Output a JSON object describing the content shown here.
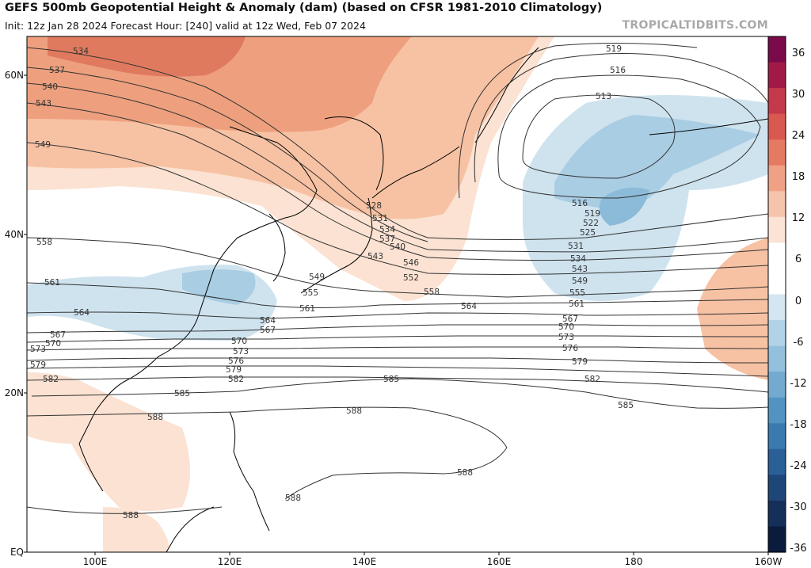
{
  "header": {
    "title": "GEFS 500mb Geopotential Height & Anomaly (dam) (based on CFSR 1981-2010 Climatology)",
    "subtitle": "Init: 12z Jan 28 2024   Forecast Hour: [240]   valid at 12z Wed, Feb 07 2024",
    "brand": "TROPICALTIDBITS.COM"
  },
  "map": {
    "region": "West Pacific / East Asia",
    "lat_labels": [
      "60N",
      "40N",
      "20N",
      "EQ"
    ],
    "lon_labels": [
      "100E",
      "120E",
      "140E",
      "160E",
      "180",
      "160W"
    ],
    "colors": {
      "anom_pos_1": "#fbe2d2",
      "anom_pos_2": "#f7c2a3",
      "anom_pos_3": "#eea07e",
      "anom_pos_4": "#e07a5f",
      "anom_neg_1": "#cfe3ef",
      "anom_neg_2": "#a9cde3",
      "anom_neg_3": "#8cbbd9",
      "contour": "#333333",
      "coastline": "#000000"
    },
    "contours": [
      {
        "value": "534",
        "label": "534"
      },
      {
        "value": "537",
        "label": "537"
      },
      {
        "value": "540",
        "label": "540"
      },
      {
        "value": "543",
        "label": "543"
      },
      {
        "value": "549",
        "label": "549"
      },
      {
        "value": "558",
        "label": "558"
      },
      {
        "value": "561",
        "label": "561"
      },
      {
        "value": "564",
        "label": "564"
      },
      {
        "value": "567",
        "label": "567"
      },
      {
        "value": "570",
        "label": "570"
      },
      {
        "value": "573",
        "label": "573"
      },
      {
        "value": "576",
        "label": "576"
      },
      {
        "value": "579",
        "label": "579"
      },
      {
        "value": "582",
        "label": "582"
      },
      {
        "value": "585",
        "label": "585"
      },
      {
        "value": "588",
        "label": "588"
      },
      {
        "value": "513",
        "label": "513"
      },
      {
        "value": "516",
        "label": "516"
      },
      {
        "value": "519",
        "label": "519"
      },
      {
        "value": "522",
        "label": "522"
      },
      {
        "value": "525",
        "label": "525"
      },
      {
        "value": "528",
        "label": "528"
      },
      {
        "value": "531",
        "label": "531"
      },
      {
        "value": "546",
        "label": "546"
      },
      {
        "value": "552",
        "label": "552"
      },
      {
        "value": "555",
        "label": "555"
      }
    ]
  },
  "colorbar": {
    "ticks": [
      "36",
      "30",
      "24",
      "18",
      "12",
      "6",
      "0",
      "-6",
      "-12",
      "-18",
      "-24",
      "-30",
      "-36"
    ],
    "colors": [
      "#7a0a4a",
      "#a11a47",
      "#c43a4a",
      "#d9584f",
      "#e57a62",
      "#efa186",
      "#f6c4ab",
      "#fbe3d5",
      "#ffffff",
      "#ffffff",
      "#d3e6f1",
      "#b2d3e7",
      "#93c0dc",
      "#73aacf",
      "#5393c1",
      "#3a7ab0",
      "#2a5f97",
      "#1e4679",
      "#142f5a",
      "#0b1b3d"
    ]
  }
}
